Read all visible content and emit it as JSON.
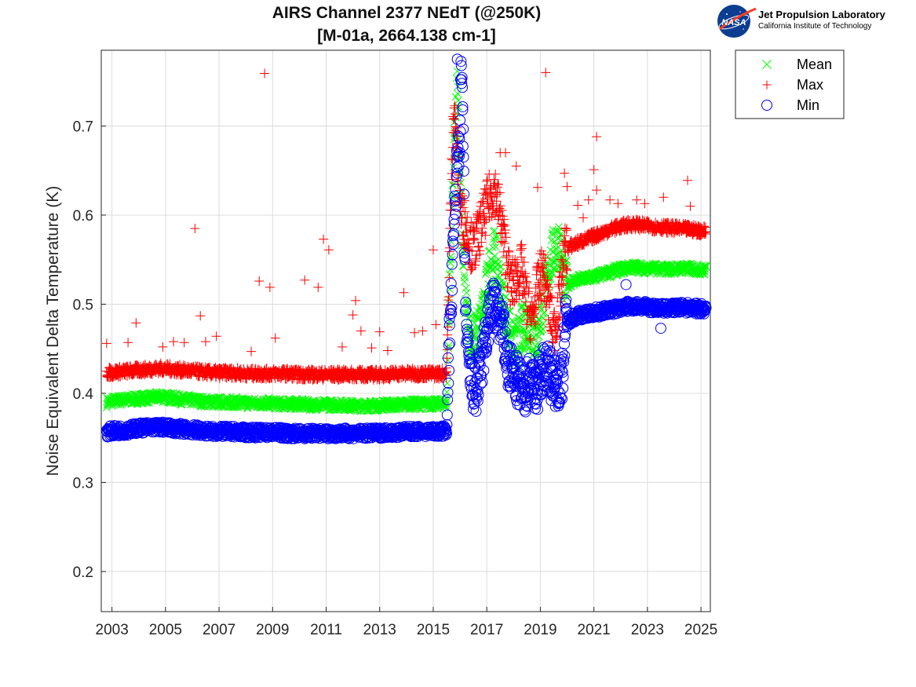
{
  "chart_data": {
    "type": "scatter",
    "title_line1": "AIRS Channel 2377 NEdT (@250K)",
    "title_line2": "[M-01a, 2664.138 cm-1]",
    "ylabel": "Noise Equivalent Delta Temperature (K)",
    "xlabel": "",
    "xlim": [
      2002.6,
      2025.35
    ],
    "ylim": [
      0.155,
      0.785
    ],
    "xticks": [
      "2003",
      "2005",
      "2007",
      "2009",
      "2011",
      "2013",
      "2015",
      "2017",
      "2019",
      "2021",
      "2023",
      "2025"
    ],
    "xtick_values": [
      2003,
      2005,
      2007,
      2009,
      2011,
      2013,
      2015,
      2017,
      2019,
      2021,
      2023,
      2025
    ],
    "yticks": [
      "0.2",
      "0.3",
      "0.4",
      "0.5",
      "0.6",
      "0.7"
    ],
    "ytick_values": [
      0.2,
      0.3,
      0.4,
      0.5,
      0.6,
      0.7
    ],
    "grid": true,
    "legend_position": "outside-top-right",
    "series": [
      {
        "name": "Mean",
        "marker": "x",
        "color": "#00ff00",
        "points": [
          [
            2002.8,
            0.39
          ],
          [
            2003.2,
            0.392
          ],
          [
            2003.6,
            0.393
          ],
          [
            2004.0,
            0.394
          ],
          [
            2004.4,
            0.395
          ],
          [
            2004.8,
            0.396
          ],
          [
            2005.2,
            0.395
          ],
          [
            2005.6,
            0.393
          ],
          [
            2006.0,
            0.392
          ],
          [
            2006.4,
            0.391
          ],
          [
            2006.8,
            0.39
          ],
          [
            2007.2,
            0.39
          ],
          [
            2007.6,
            0.39
          ],
          [
            2008.0,
            0.389
          ],
          [
            2008.4,
            0.389
          ],
          [
            2008.8,
            0.389
          ],
          [
            2009.2,
            0.388
          ],
          [
            2009.6,
            0.388
          ],
          [
            2010.0,
            0.388
          ],
          [
            2010.4,
            0.387
          ],
          [
            2010.8,
            0.387
          ],
          [
            2011.2,
            0.387
          ],
          [
            2011.6,
            0.387
          ],
          [
            2012.0,
            0.386
          ],
          [
            2012.4,
            0.386
          ],
          [
            2012.8,
            0.386
          ],
          [
            2013.2,
            0.387
          ],
          [
            2013.6,
            0.387
          ],
          [
            2014.0,
            0.388
          ],
          [
            2014.4,
            0.388
          ],
          [
            2014.8,
            0.388
          ],
          [
            2015.2,
            0.388
          ],
          [
            2015.5,
            0.389
          ],
          [
            2015.6,
            0.5
          ],
          [
            2015.7,
            0.6
          ],
          [
            2015.8,
            0.7
          ],
          [
            2015.9,
            0.74
          ],
          [
            2016.0,
            0.65
          ],
          [
            2016.1,
            0.56
          ],
          [
            2016.2,
            0.5
          ],
          [
            2016.35,
            0.47
          ],
          [
            2016.5,
            0.46
          ],
          [
            2016.7,
            0.47
          ],
          [
            2016.9,
            0.5
          ],
          [
            2017.1,
            0.54
          ],
          [
            2017.3,
            0.56
          ],
          [
            2017.5,
            0.52
          ],
          [
            2017.7,
            0.49
          ],
          [
            2017.9,
            0.46
          ],
          [
            2018.1,
            0.45
          ],
          [
            2018.3,
            0.47
          ],
          [
            2018.5,
            0.48
          ],
          [
            2018.7,
            0.47
          ],
          [
            2018.9,
            0.46
          ],
          [
            2019.1,
            0.5
          ],
          [
            2019.3,
            0.54
          ],
          [
            2019.5,
            0.56
          ],
          [
            2019.7,
            0.57
          ],
          [
            2019.9,
            0.52
          ],
          [
            2020.1,
            0.525
          ],
          [
            2020.5,
            0.528
          ],
          [
            2020.9,
            0.53
          ],
          [
            2021.3,
            0.533
          ],
          [
            2021.7,
            0.537
          ],
          [
            2022.1,
            0.54
          ],
          [
            2022.5,
            0.542
          ],
          [
            2022.9,
            0.54
          ],
          [
            2023.3,
            0.54
          ],
          [
            2023.7,
            0.539
          ],
          [
            2024.1,
            0.54
          ],
          [
            2024.5,
            0.54
          ],
          [
            2024.9,
            0.539
          ],
          [
            2025.2,
            0.538
          ]
        ]
      },
      {
        "name": "Max",
        "marker": "+",
        "color": "#ff0000",
        "points": [
          [
            2002.8,
            0.423
          ],
          [
            2003.2,
            0.424
          ],
          [
            2003.6,
            0.425
          ],
          [
            2004.0,
            0.426
          ],
          [
            2004.4,
            0.427
          ],
          [
            2004.8,
            0.428
          ],
          [
            2005.2,
            0.427
          ],
          [
            2005.6,
            0.426
          ],
          [
            2006.0,
            0.425
          ],
          [
            2006.4,
            0.424
          ],
          [
            2006.8,
            0.423
          ],
          [
            2007.2,
            0.423
          ],
          [
            2007.6,
            0.423
          ],
          [
            2008.0,
            0.422
          ],
          [
            2008.4,
            0.422
          ],
          [
            2008.8,
            0.422
          ],
          [
            2009.2,
            0.422
          ],
          [
            2009.6,
            0.422
          ],
          [
            2010.0,
            0.421
          ],
          [
            2010.4,
            0.421
          ],
          [
            2010.8,
            0.421
          ],
          [
            2011.2,
            0.421
          ],
          [
            2011.6,
            0.421
          ],
          [
            2012.0,
            0.421
          ],
          [
            2012.4,
            0.421
          ],
          [
            2012.8,
            0.421
          ],
          [
            2013.2,
            0.421
          ],
          [
            2013.6,
            0.422
          ],
          [
            2014.0,
            0.422
          ],
          [
            2014.4,
            0.422
          ],
          [
            2014.8,
            0.422
          ],
          [
            2015.2,
            0.422
          ],
          [
            2015.5,
            0.423
          ],
          [
            2015.65,
            0.6
          ],
          [
            2015.75,
            0.72
          ],
          [
            2015.85,
            0.69
          ],
          [
            2015.95,
            0.64
          ],
          [
            2016.05,
            0.6
          ],
          [
            2016.2,
            0.59
          ],
          [
            2016.35,
            0.57
          ],
          [
            2016.5,
            0.56
          ],
          [
            2016.7,
            0.58
          ],
          [
            2016.9,
            0.6
          ],
          [
            2017.1,
            0.62
          ],
          [
            2017.3,
            0.63
          ],
          [
            2017.5,
            0.6
          ],
          [
            2017.7,
            0.56
          ],
          [
            2017.9,
            0.52
          ],
          [
            2018.1,
            0.53
          ],
          [
            2018.3,
            0.54
          ],
          [
            2018.5,
            0.5
          ],
          [
            2018.7,
            0.48
          ],
          [
            2018.9,
            0.52
          ],
          [
            2019.1,
            0.54
          ],
          [
            2019.3,
            0.5
          ],
          [
            2019.5,
            0.47
          ],
          [
            2019.7,
            0.5
          ],
          [
            2019.9,
            0.56
          ],
          [
            2020.1,
            0.565
          ],
          [
            2020.5,
            0.57
          ],
          [
            2020.9,
            0.575
          ],
          [
            2021.3,
            0.58
          ],
          [
            2021.7,
            0.585
          ],
          [
            2022.1,
            0.588
          ],
          [
            2022.5,
            0.59
          ],
          [
            2022.9,
            0.588
          ],
          [
            2023.3,
            0.587
          ],
          [
            2023.7,
            0.586
          ],
          [
            2024.1,
            0.585
          ],
          [
            2024.5,
            0.584
          ],
          [
            2024.9,
            0.583
          ],
          [
            2025.2,
            0.582
          ]
        ],
        "outliers": [
          [
            2002.8,
            0.456
          ],
          [
            2003.6,
            0.457
          ],
          [
            2003.9,
            0.479
          ],
          [
            2004.9,
            0.452
          ],
          [
            2005.3,
            0.458
          ],
          [
            2005.7,
            0.457
          ],
          [
            2006.1,
            0.585
          ],
          [
            2006.3,
            0.487
          ],
          [
            2006.5,
            0.458
          ],
          [
            2006.9,
            0.464
          ],
          [
            2008.2,
            0.447
          ],
          [
            2008.5,
            0.526
          ],
          [
            2008.7,
            0.759
          ],
          [
            2008.9,
            0.519
          ],
          [
            2009.1,
            0.462
          ],
          [
            2010.2,
            0.527
          ],
          [
            2010.7,
            0.519
          ],
          [
            2010.9,
            0.573
          ],
          [
            2011.1,
            0.561
          ],
          [
            2011.6,
            0.452
          ],
          [
            2012.0,
            0.488
          ],
          [
            2012.1,
            0.504
          ],
          [
            2012.3,
            0.47
          ],
          [
            2012.7,
            0.451
          ],
          [
            2013.0,
            0.469
          ],
          [
            2013.3,
            0.448
          ],
          [
            2013.9,
            0.513
          ],
          [
            2014.3,
            0.468
          ],
          [
            2014.6,
            0.47
          ],
          [
            2015.0,
            0.561
          ],
          [
            2015.1,
            0.477
          ],
          [
            2017.5,
            0.67
          ],
          [
            2017.7,
            0.67
          ],
          [
            2018.1,
            0.655
          ],
          [
            2018.9,
            0.631
          ],
          [
            2019.2,
            0.76
          ],
          [
            2019.9,
            0.647
          ],
          [
            2020.0,
            0.632
          ],
          [
            2020.4,
            0.611
          ],
          [
            2020.6,
            0.597
          ],
          [
            2020.8,
            0.617
          ],
          [
            2021.0,
            0.651
          ],
          [
            2021.1,
            0.688
          ],
          [
            2021.1,
            0.628
          ],
          [
            2021.6,
            0.617
          ],
          [
            2021.9,
            0.613
          ],
          [
            2022.6,
            0.617
          ],
          [
            2022.9,
            0.613
          ],
          [
            2023.6,
            0.62
          ],
          [
            2024.5,
            0.639
          ],
          [
            2024.6,
            0.61
          ]
        ]
      },
      {
        "name": "Min",
        "marker": "o",
        "color": "#0000ff",
        "points": [
          [
            2002.8,
            0.357
          ],
          [
            2003.2,
            0.358
          ],
          [
            2003.6,
            0.359
          ],
          [
            2004.0,
            0.361
          ],
          [
            2004.4,
            0.362
          ],
          [
            2004.8,
            0.362
          ],
          [
            2005.2,
            0.361
          ],
          [
            2005.6,
            0.36
          ],
          [
            2006.0,
            0.359
          ],
          [
            2006.4,
            0.358
          ],
          [
            2006.8,
            0.357
          ],
          [
            2007.2,
            0.357
          ],
          [
            2007.6,
            0.357
          ],
          [
            2008.0,
            0.356
          ],
          [
            2008.4,
            0.356
          ],
          [
            2008.8,
            0.356
          ],
          [
            2009.2,
            0.356
          ],
          [
            2009.6,
            0.355
          ],
          [
            2010.0,
            0.355
          ],
          [
            2010.4,
            0.355
          ],
          [
            2010.8,
            0.355
          ],
          [
            2011.2,
            0.355
          ],
          [
            2011.6,
            0.355
          ],
          [
            2012.0,
            0.355
          ],
          [
            2012.4,
            0.355
          ],
          [
            2012.8,
            0.355
          ],
          [
            2013.2,
            0.356
          ],
          [
            2013.6,
            0.356
          ],
          [
            2014.0,
            0.357
          ],
          [
            2014.4,
            0.357
          ],
          [
            2014.8,
            0.357
          ],
          [
            2015.2,
            0.357
          ],
          [
            2015.5,
            0.358
          ],
          [
            2015.6,
            0.46
          ],
          [
            2015.7,
            0.52
          ],
          [
            2015.8,
            0.6
          ],
          [
            2015.9,
            0.66
          ],
          [
            2016.0,
            0.7
          ],
          [
            2016.05,
            0.76
          ],
          [
            2016.1,
            0.72
          ],
          [
            2016.15,
            0.6
          ],
          [
            2016.2,
            0.5
          ],
          [
            2016.3,
            0.44
          ],
          [
            2016.45,
            0.41
          ],
          [
            2016.6,
            0.4
          ],
          [
            2016.8,
            0.43
          ],
          [
            2017.0,
            0.47
          ],
          [
            2017.2,
            0.5
          ],
          [
            2017.4,
            0.49
          ],
          [
            2017.6,
            0.47
          ],
          [
            2017.8,
            0.43
          ],
          [
            2018.0,
            0.42
          ],
          [
            2018.2,
            0.41
          ],
          [
            2018.4,
            0.4
          ],
          [
            2018.6,
            0.42
          ],
          [
            2018.8,
            0.41
          ],
          [
            2019.0,
            0.42
          ],
          [
            2019.2,
            0.43
          ],
          [
            2019.4,
            0.42
          ],
          [
            2019.6,
            0.41
          ],
          [
            2019.8,
            0.415
          ],
          [
            2019.95,
            0.48
          ],
          [
            2020.2,
            0.485
          ],
          [
            2020.5,
            0.488
          ],
          [
            2020.9,
            0.49
          ],
          [
            2021.3,
            0.492
          ],
          [
            2021.7,
            0.494
          ],
          [
            2022.1,
            0.497
          ],
          [
            2022.5,
            0.498
          ],
          [
            2022.9,
            0.497
          ],
          [
            2023.3,
            0.496
          ],
          [
            2023.7,
            0.495
          ],
          [
            2024.1,
            0.496
          ],
          [
            2024.5,
            0.496
          ],
          [
            2024.9,
            0.495
          ],
          [
            2025.2,
            0.495
          ]
        ],
        "outliers": [
          [
            2015.9,
            0.775
          ],
          [
            2016.05,
            0.752
          ],
          [
            2016.1,
            0.718
          ],
          [
            2018.9,
            0.382
          ],
          [
            2022.2,
            0.522
          ],
          [
            2023.5,
            0.473
          ]
        ]
      }
    ]
  },
  "logo": {
    "org_name": "Jet Propulsion Laboratory",
    "org_subtitle": "California Institute of Technology",
    "badge_text": "NASA"
  },
  "colors": {
    "mean": "#00ff00",
    "max": "#ff0000",
    "min": "#0000ff",
    "grid": "#dcdcdc",
    "axis": "#262626"
  }
}
